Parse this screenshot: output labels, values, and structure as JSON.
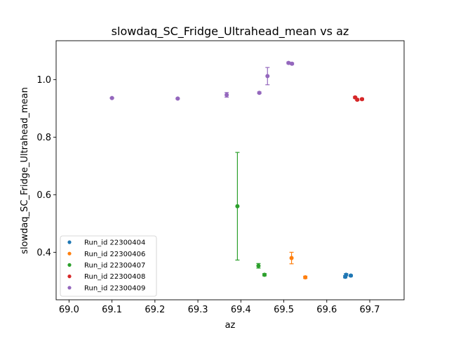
{
  "chart_data": {
    "type": "scatter",
    "title": "slowdaq_SC_Fridge_Ultrahead_mean vs az",
    "xlabel": "az",
    "ylabel": "slowdaq_SC_Fridge_Ultrahead_mean",
    "xlim": [
      68.97,
      69.78
    ],
    "ylim": [
      0.235,
      1.135
    ],
    "xticks": [
      69.0,
      69.1,
      69.2,
      69.3,
      69.4,
      69.5,
      69.6,
      69.7
    ],
    "xtick_labels": [
      "69.0",
      "69.1",
      "69.2",
      "69.3",
      "69.4",
      "69.5",
      "69.6",
      "69.7"
    ],
    "yticks": [
      0.4,
      0.6,
      0.8,
      1.0
    ],
    "ytick_labels": [
      "0.4",
      "0.6",
      "0.8",
      "1.0"
    ],
    "grid": false,
    "legend_position": "lower-left",
    "series": [
      {
        "name": "Run_id 22300404",
        "color": "#1f77b4",
        "points": [
          {
            "x": 69.643,
            "y": 0.315,
            "err": 0.004
          },
          {
            "x": 69.645,
            "y": 0.322,
            "err": 0.004
          },
          {
            "x": 69.656,
            "y": 0.319,
            "err": 0.003
          }
        ]
      },
      {
        "name": "Run_id 22300406",
        "color": "#ff7f0e",
        "points": [
          {
            "x": 69.518,
            "y": 0.38,
            "err": 0.02
          },
          {
            "x": 69.55,
            "y": 0.313,
            "err": 0.004
          }
        ]
      },
      {
        "name": "Run_id 22300407",
        "color": "#2ca02c",
        "points": [
          {
            "x": 69.392,
            "y": 0.56,
            "err": 0.187
          },
          {
            "x": 69.441,
            "y": 0.353,
            "err": 0.008
          },
          {
            "x": 69.455,
            "y": 0.322,
            "err": 0.004
          }
        ]
      },
      {
        "name": "Run_id 22300408",
        "color": "#d62728",
        "points": [
          {
            "x": 69.666,
            "y": 0.938,
            "err": 0.003
          },
          {
            "x": 69.671,
            "y": 0.93,
            "err": 0.003
          },
          {
            "x": 69.682,
            "y": 0.932,
            "err": 0.003
          }
        ]
      },
      {
        "name": "Run_id 22300409",
        "color": "#9467bd",
        "points": [
          {
            "x": 69.1,
            "y": 0.936,
            "err": 0.002
          },
          {
            "x": 69.253,
            "y": 0.934,
            "err": 0.002
          },
          {
            "x": 69.367,
            "y": 0.947,
            "err": 0.008
          },
          {
            "x": 69.443,
            "y": 0.954,
            "err": 0.003
          },
          {
            "x": 69.462,
            "y": 1.012,
            "err": 0.03
          },
          {
            "x": 69.511,
            "y": 1.058,
            "err": 0.003
          },
          {
            "x": 69.519,
            "y": 1.055,
            "err": 0.003
          }
        ]
      }
    ]
  }
}
